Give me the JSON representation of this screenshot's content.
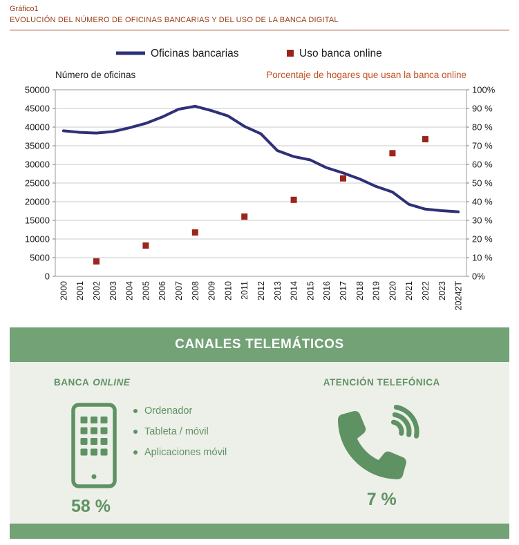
{
  "header": {
    "label": "Gráfico1",
    "title": "EVOLUCIÓN DEL NÚMERO DE OFICINAS BANCARIAS Y DEL USO DE LA BANCA DIGITAL"
  },
  "chart_data": {
    "type": "line",
    "legend": [
      {
        "label": "Oficinas bancarias",
        "marker": "line",
        "color": "#2e3078"
      },
      {
        "label": "Uso banca online",
        "marker": "square",
        "color": "#9b241c"
      }
    ],
    "left_axis": {
      "title": "Número de oficinas",
      "min": 0,
      "max": 50000,
      "step": 5000,
      "tick_labels": [
        "0",
        "5000",
        "10000",
        "15000",
        "20000",
        "25000",
        "30000",
        "35000",
        "40000",
        "45000",
        "50000"
      ]
    },
    "right_axis": {
      "title": "Porcentaje de hogares que usan la banca online",
      "min": 0,
      "max": 100,
      "step": 10,
      "tick_labels": [
        "0%",
        "10 %",
        "20 %",
        "30 %",
        "40 %",
        "50 %",
        "60 %",
        "70 %",
        "80 %",
        "90 %",
        "100%"
      ]
    },
    "categories": [
      "2000",
      "2001",
      "2002",
      "2003",
      "2004",
      "2005",
      "2006",
      "2007",
      "2008",
      "2009",
      "2010",
      "2011",
      "2012",
      "2013",
      "2014",
      "2015",
      "2016",
      "2017",
      "2018",
      "2019",
      "2020",
      "2021",
      "2022",
      "2023",
      "20242T"
    ],
    "series": [
      {
        "name": "Oficinas bancarias",
        "axis": "left",
        "type": "line",
        "color": "#2e3078",
        "values": [
          39000,
          38600,
          38400,
          38800,
          39800,
          41000,
          42700,
          44800,
          45600,
          44400,
          43000,
          40200,
          38200,
          33700,
          32100,
          31200,
          29100,
          27700,
          26100,
          24100,
          22600,
          19300,
          18000,
          17600,
          17300
        ]
      },
      {
        "name": "Uso banca online",
        "axis": "right",
        "type": "scatter-square",
        "color": "#9b241c",
        "values": [
          null,
          null,
          8,
          null,
          null,
          16.5,
          null,
          null,
          23.5,
          null,
          null,
          32,
          null,
          null,
          41,
          null,
          null,
          52.5,
          null,
          null,
          66,
          null,
          73.5,
          null,
          null
        ]
      }
    ],
    "grid": "horizontal"
  },
  "panel": {
    "title": "CANALES TELEMÁTICOS",
    "banca_online": {
      "title_prefix": "BANCA",
      "title_italic": "ONLINE",
      "icon": "smartphone-icon",
      "bullets": [
        "Ordenador",
        "Tableta / móvil",
        "Aplicaciones móvil"
      ],
      "value": "58 %"
    },
    "telefonica": {
      "title": "ATENCIÓN TELEFÓNICA",
      "icon": "phone-handset-icon",
      "value": "7 %"
    }
  },
  "colors": {
    "maroon": "#9c3c17",
    "orange": "#bf4f1f",
    "navy": "#2e3078",
    "dark_red": "#9b241c",
    "green_bar": "#72a276",
    "green_text": "#5f9263",
    "panel_bg": "#edefe9",
    "grid": "#c9c9c9",
    "plot_border": "#999999",
    "text": "#1a1a1a"
  }
}
